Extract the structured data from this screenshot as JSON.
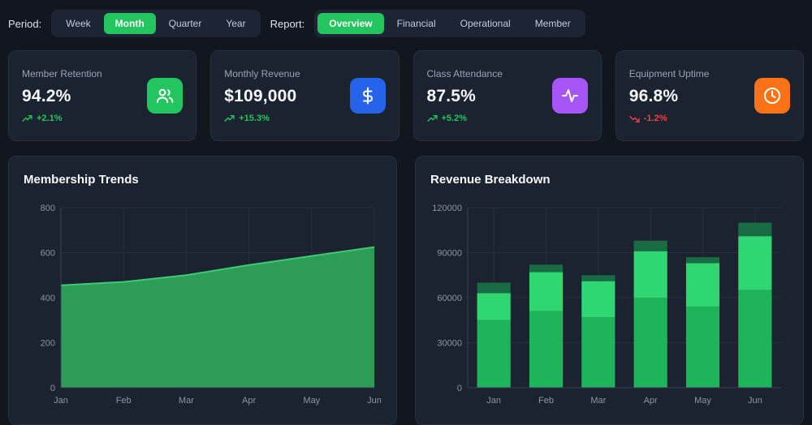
{
  "toolbar": {
    "period_label": "Period:",
    "period_options": [
      "Week",
      "Month",
      "Quarter",
      "Year"
    ],
    "period_active": "Month",
    "report_label": "Report:",
    "report_options": [
      "Overview",
      "Financial",
      "Operational",
      "Member"
    ],
    "report_active": "Overview",
    "active_color": "#22c55e"
  },
  "cards": [
    {
      "title": "Member Retention",
      "value": "94.2%",
      "delta": "+2.1%",
      "trend": "up",
      "icon": "users-icon",
      "icon_color": "#22c55e"
    },
    {
      "title": "Monthly Revenue",
      "value": "$109,000",
      "delta": "+15.3%",
      "trend": "up",
      "icon": "dollar-icon",
      "icon_color": "#2563eb"
    },
    {
      "title": "Class Attendance",
      "value": "87.5%",
      "delta": "+5.2%",
      "trend": "up",
      "icon": "activity-icon",
      "icon_color": "#a855f7"
    },
    {
      "title": "Equipment Uptime",
      "value": "96.8%",
      "delta": "-1.2%",
      "trend": "down",
      "icon": "clock-icon",
      "icon_color": "#f97316"
    }
  ],
  "status_colors": {
    "positive": "#22c55e",
    "negative": "#ef4444"
  },
  "chart_data": [
    {
      "id": "membership-trends",
      "type": "area",
      "title": "Membership Trends",
      "x": [
        "Jan",
        "Feb",
        "Mar",
        "Apr",
        "May",
        "Jun"
      ],
      "values": [
        455,
        470,
        500,
        545,
        585,
        625
      ],
      "ylim": [
        0,
        800
      ],
      "yticks": [
        0,
        200,
        400,
        600,
        800
      ],
      "xlabel": "",
      "ylabel": "",
      "grid": true,
      "legend": "none",
      "fill_color": "#2d9c57",
      "line_color": "#3fca75"
    },
    {
      "id": "revenue-breakdown",
      "type": "bar",
      "subtype": "stacked",
      "title": "Revenue Breakdown",
      "categories": [
        "Jan",
        "Feb",
        "Mar",
        "Apr",
        "May",
        "Jun"
      ],
      "series": [
        {
          "name": "segment-bottom",
          "color": "#1db45c",
          "values": [
            45000,
            51000,
            47000,
            60000,
            54000,
            65000
          ]
        },
        {
          "name": "segment-middle",
          "color": "#30d671",
          "values": [
            18000,
            26000,
            24000,
            31000,
            29000,
            36000
          ]
        },
        {
          "name": "segment-top",
          "color": "#186b42",
          "values": [
            7000,
            5000,
            4000,
            7000,
            4000,
            9000
          ]
        }
      ],
      "ylim": [
        0,
        120000
      ],
      "yticks": [
        0,
        30000,
        60000,
        90000,
        120000
      ],
      "xlabel": "",
      "ylabel": "",
      "grid": true,
      "legend": "none"
    }
  ]
}
